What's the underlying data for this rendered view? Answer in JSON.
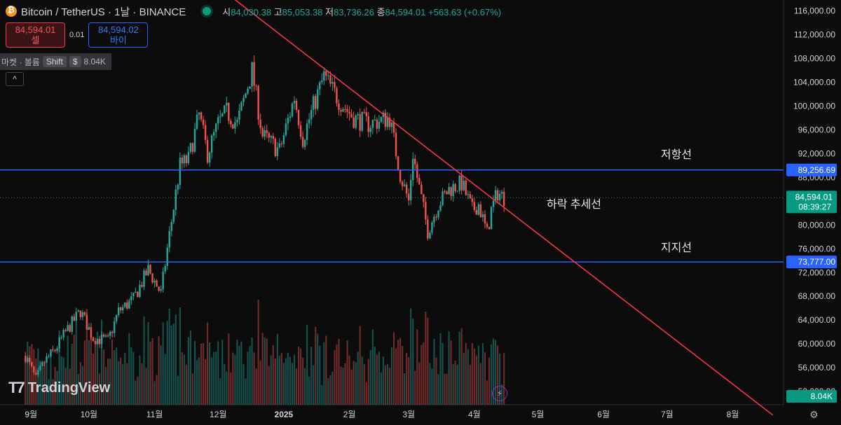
{
  "header": {
    "symbol": "Bitcoin / TetherUS · 1날 · BINANCE",
    "open_label": "시",
    "open": "84,030.38",
    "high_label": "고",
    "high": "85,053.38",
    "low_label": "저",
    "low": "83,736.26",
    "close_label": "종",
    "close": "84,594.01",
    "change": "+563.63 (+0.67%)"
  },
  "trade": {
    "sell_price": "84,594.01",
    "sell_label": "셀",
    "spread": "0.01",
    "buy_price": "84,594.02",
    "buy_label": "바이"
  },
  "volume_legend": {
    "label": "마켓 · 볼륨",
    "tag": "Shift",
    "tag2": "$",
    "value": "8.04K"
  },
  "collapse_glyph": "^",
  "branding": {
    "name": "TradingView",
    "mark": "T7"
  },
  "chart_data": {
    "type": "candlestick",
    "y_axis_ticks": [
      "116,000.00",
      "112,000.00",
      "108,000.00",
      "104,000.00",
      "100,000.00",
      "96,000.00",
      "92,000.00",
      "88,000.00",
      "84,000.00",
      "80,000.00",
      "76,000.00",
      "72,000.00",
      "68,000.00",
      "64,000.00",
      "60,000.00",
      "56,000.00",
      "52,000.00"
    ],
    "ylim": [
      48000,
      117000
    ],
    "x_axis_labels": [
      "9월",
      "10월",
      "11월",
      "12월",
      "2025",
      "2월",
      "3월",
      "4월",
      "5월",
      "6월",
      "7월",
      "8월"
    ],
    "price_path": [
      [
        "2024-09-01",
        58000
      ],
      [
        "2024-09-06",
        54000
      ],
      [
        "2024-09-10",
        57000
      ],
      [
        "2024-09-15",
        59000
      ],
      [
        "2024-09-20",
        62000
      ],
      [
        "2024-09-27",
        65500
      ],
      [
        "2024-10-03",
        61000
      ],
      [
        "2024-10-10",
        60500
      ],
      [
        "2024-10-15",
        65500
      ],
      [
        "2024-10-22",
        67500
      ],
      [
        "2024-10-29",
        72500
      ],
      [
        "2024-11-04",
        68500
      ],
      [
        "2024-11-07",
        76000
      ],
      [
        "2024-11-13",
        90000
      ],
      [
        "2024-11-17",
        91000
      ],
      [
        "2024-11-22",
        98500
      ],
      [
        "2024-11-26",
        92000
      ],
      [
        "2024-12-01",
        97000
      ],
      [
        "2024-12-05",
        99000
      ],
      [
        "2024-12-10",
        97000
      ],
      [
        "2024-12-17",
        106000
      ],
      [
        "2024-12-22",
        95000
      ],
      [
        "2024-12-30",
        92500
      ],
      [
        "2025-01-06",
        101500
      ],
      [
        "2025-01-10",
        94500
      ],
      [
        "2025-01-15",
        100000
      ],
      [
        "2025-01-20",
        105000
      ],
      [
        "2025-01-27",
        101000
      ],
      [
        "2025-02-03",
        98000
      ],
      [
        "2025-02-10",
        97000
      ],
      [
        "2025-02-20",
        98000
      ],
      [
        "2025-02-25",
        88500
      ],
      [
        "2025-03-01",
        84000
      ],
      [
        "2025-03-03",
        92000
      ],
      [
        "2025-03-05",
        88000
      ],
      [
        "2025-03-10",
        79000
      ],
      [
        "2025-03-15",
        83500
      ],
      [
        "2025-03-20",
        86000
      ],
      [
        "2025-03-26",
        87000
      ],
      [
        "2025-03-31",
        82500
      ],
      [
        "2025-04-03",
        83500
      ],
      [
        "2025-04-07",
        78500
      ],
      [
        "2025-04-09",
        82500
      ],
      [
        "2025-04-12",
        85500
      ],
      [
        "2025-04-15",
        84594
      ]
    ],
    "volume_last": "8.04K",
    "horizontal_lines": [
      {
        "label": "저항선",
        "value": 89256.69,
        "price_label": "89,256.69",
        "color": "#2962ff"
      },
      {
        "label": "지지선",
        "value": 73777.0,
        "price_label": "73,777.00",
        "color": "#2962ff"
      }
    ],
    "trend_line": {
      "label": "하락 추세선",
      "color": "#f23645",
      "points": [
        [
          "2024-12-05",
          119000
        ],
        [
          "2025-08-20",
          48000
        ]
      ]
    },
    "last_price": {
      "value": 84594.01,
      "price_label": "84,594.01",
      "countdown": "08:39:27",
      "color": "#089981"
    },
    "colors": {
      "up": "#26a69a",
      "down": "#ef5350",
      "grid": "#1c1e24",
      "text": "#d1d4dc"
    }
  }
}
